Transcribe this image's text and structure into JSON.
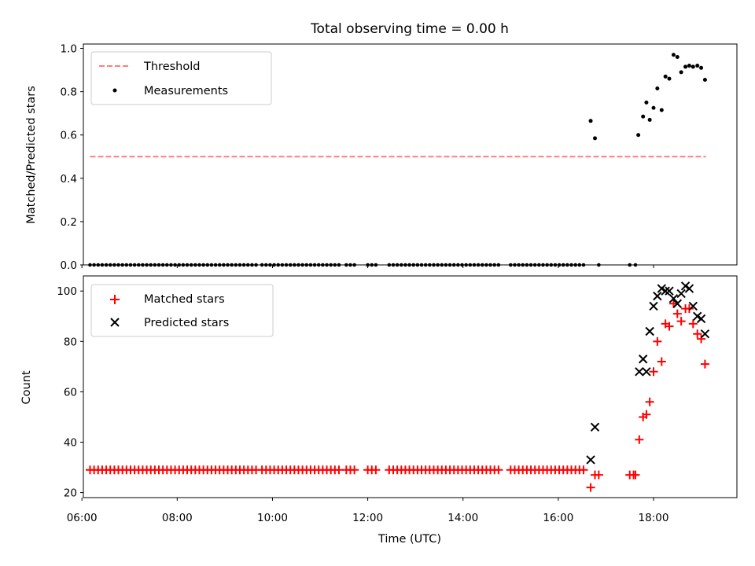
{
  "chart_data": [
    {
      "type": "scatter",
      "title": "Total observing time = 0.00 h",
      "ylabel": "Matched/Predicted stars",
      "xlabel": "",
      "xlim": [
        6.03,
        19.75
      ],
      "ylim": [
        0,
        1.02
      ],
      "yticks": [
        0.0,
        0.2,
        0.4,
        0.6,
        0.8,
        1.0
      ],
      "ytick_labels": [
        "0.0",
        "0.2",
        "0.4",
        "0.6",
        "0.8",
        "1.0"
      ],
      "xticks": [
        6,
        8,
        10,
        12,
        14,
        16,
        18
      ],
      "legend_position": "top-left",
      "threshold": {
        "name": "Threshold",
        "value": 0.5,
        "x_range": [
          6.17,
          19.1
        ],
        "color": "#ff7f7f"
      },
      "series": [
        {
          "name": "Measurements",
          "color": "#000000",
          "marker": "dot",
          "zero_segments": [
            [
              6.17,
              9.72
            ],
            [
              9.78,
              11.45
            ],
            [
              11.55,
              11.75
            ],
            [
              12.0,
              12.25
            ],
            [
              12.45,
              14.8
            ],
            [
              15.0,
              16.6
            ]
          ],
          "zero_points": [
            16.85,
            17.5,
            17.62
          ],
          "points": [
            [
              16.68,
              0.665
            ],
            [
              16.77,
              0.585
            ],
            [
              17.68,
              0.6
            ],
            [
              17.78,
              0.685
            ],
            [
              17.85,
              0.75
            ],
            [
              17.92,
              0.67
            ],
            [
              18.0,
              0.725
            ],
            [
              18.08,
              0.815
            ],
            [
              18.17,
              0.715
            ],
            [
              18.25,
              0.87
            ],
            [
              18.33,
              0.86
            ],
            [
              18.42,
              0.97
            ],
            [
              18.5,
              0.96
            ],
            [
              18.58,
              0.89
            ],
            [
              18.67,
              0.915
            ],
            [
              18.75,
              0.92
            ],
            [
              18.83,
              0.915
            ],
            [
              18.92,
              0.92
            ],
            [
              19.0,
              0.91
            ],
            [
              19.08,
              0.855
            ]
          ]
        }
      ]
    },
    {
      "type": "scatter",
      "title": "",
      "ylabel": "Count",
      "xlabel": "Time (UTC)",
      "xlim": [
        6.03,
        19.75
      ],
      "ylim": [
        18,
        106
      ],
      "yticks": [
        20,
        40,
        60,
        80,
        100
      ],
      "ytick_labels": [
        "20",
        "40",
        "60",
        "80",
        "100"
      ],
      "xticks": [
        6,
        8,
        10,
        12,
        14,
        16,
        18
      ],
      "xtick_labels": [
        "06:00",
        "08:00",
        "10:00",
        "12:00",
        "14:00",
        "16:00",
        "18:00"
      ],
      "legend_position": "top-left",
      "series": [
        {
          "name": "Matched stars",
          "color": "#ff0000",
          "marker": "plus",
          "flat_value": 29,
          "flat_segments": [
            [
              6.17,
              9.72
            ],
            [
              9.78,
              11.45
            ],
            [
              11.55,
              11.75
            ],
            [
              12.0,
              12.25
            ],
            [
              12.45,
              14.8
            ],
            [
              15.0,
              16.6
            ]
          ],
          "points": [
            [
              16.68,
              22
            ],
            [
              16.77,
              27
            ],
            [
              16.85,
              27
            ],
            [
              17.5,
              27
            ],
            [
              17.58,
              27
            ],
            [
              17.62,
              27
            ],
            [
              17.7,
              41
            ],
            [
              17.78,
              50
            ],
            [
              17.85,
              51
            ],
            [
              17.92,
              56
            ],
            [
              18.0,
              68
            ],
            [
              18.08,
              80
            ],
            [
              18.17,
              72
            ],
            [
              18.25,
              87
            ],
            [
              18.33,
              86
            ],
            [
              18.42,
              95
            ],
            [
              18.5,
              91
            ],
            [
              18.58,
              88
            ],
            [
              18.67,
              93
            ],
            [
              18.75,
              93
            ],
            [
              18.83,
              87
            ],
            [
              18.92,
              83
            ],
            [
              19.0,
              81
            ],
            [
              19.08,
              71
            ]
          ]
        },
        {
          "name": "Predicted stars",
          "color": "#000000",
          "marker": "x",
          "points": [
            [
              16.68,
              33
            ],
            [
              16.77,
              46
            ],
            [
              17.7,
              68
            ],
            [
              17.78,
              73
            ],
            [
              17.85,
              68
            ],
            [
              17.92,
              84
            ],
            [
              18.0,
              94
            ],
            [
              18.08,
              98
            ],
            [
              18.17,
              101
            ],
            [
              18.25,
              100
            ],
            [
              18.33,
              100
            ],
            [
              18.42,
              97
            ],
            [
              18.5,
              95
            ],
            [
              18.58,
              99
            ],
            [
              18.67,
              102
            ],
            [
              18.75,
              101
            ],
            [
              18.83,
              94
            ],
            [
              18.92,
              90
            ],
            [
              19.0,
              89
            ],
            [
              19.08,
              83
            ]
          ]
        }
      ]
    }
  ]
}
